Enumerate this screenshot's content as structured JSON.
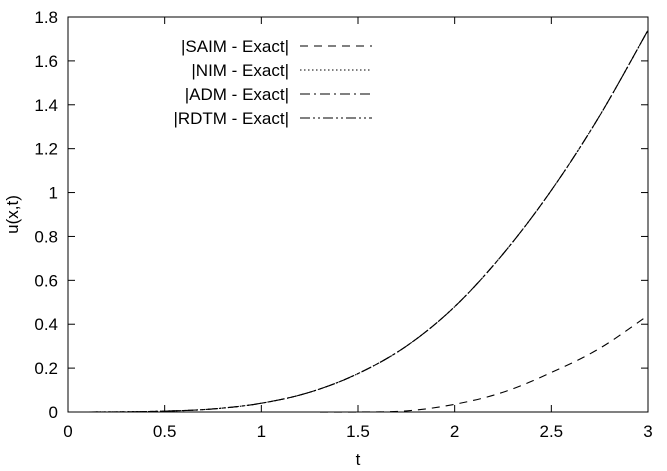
{
  "chart_data": {
    "type": "line",
    "title": "",
    "xlabel": "t",
    "ylabel": "u(x,t)",
    "xlim": [
      0,
      3
    ],
    "ylim": [
      0,
      1.8
    ],
    "grid": false,
    "legend_position": "top-left",
    "x_ticks": [
      "0",
      "0.5",
      "1",
      "1.5",
      "2",
      "2.5",
      "3"
    ],
    "y_ticks": [
      "0",
      "0.2",
      "0.4",
      "0.6",
      "0.8",
      "1",
      "1.2",
      "1.4",
      "1.6",
      "1.8"
    ],
    "x": [
      0,
      0.25,
      0.5,
      0.75,
      1,
      1.25,
      1.5,
      1.75,
      2,
      2.25,
      2.5,
      2.75,
      3
    ],
    "series": [
      {
        "name": "|SAIM - Exact|",
        "dash": "dashed",
        "values": [
          0,
          0,
          0,
          0,
          0,
          0,
          0,
          0.005,
          0.035,
          0.09,
          0.18,
          0.29,
          0.44
        ]
      },
      {
        "name": "|NIM - Exact|",
        "dash": "dotted",
        "values": [
          0,
          0.0005,
          0.004,
          0.014,
          0.04,
          0.09,
          0.175,
          0.3,
          0.48,
          0.72,
          1.01,
          1.35,
          1.74
        ]
      },
      {
        "name": "|ADM - Exact|",
        "dash": "dash-dot",
        "values": [
          0,
          0.0005,
          0.004,
          0.014,
          0.04,
          0.09,
          0.175,
          0.3,
          0.48,
          0.72,
          1.01,
          1.35,
          1.74
        ]
      },
      {
        "name": "|RDTM - Exact|",
        "dash": "dash-dot-dot",
        "values": [
          0,
          0.0005,
          0.004,
          0.014,
          0.04,
          0.09,
          0.175,
          0.3,
          0.48,
          0.72,
          1.01,
          1.35,
          1.74
        ]
      }
    ]
  }
}
